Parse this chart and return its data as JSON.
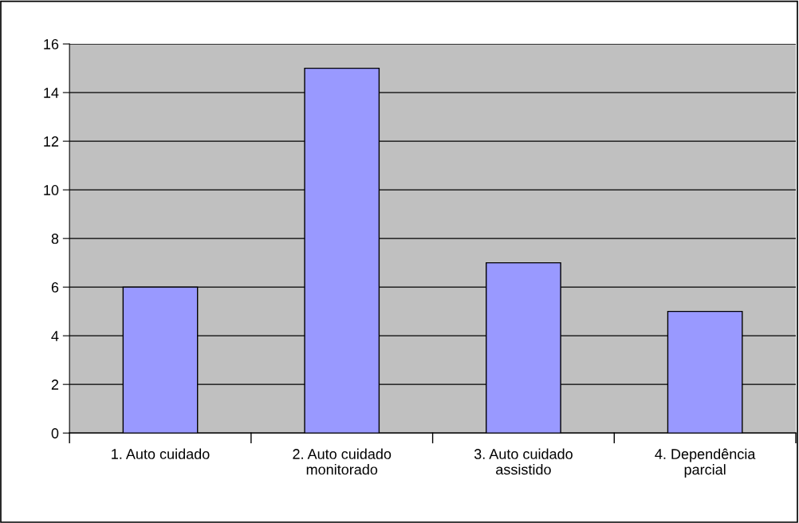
{
  "chart_data": {
    "type": "bar",
    "categories": [
      "1. Auto cuidado",
      "2. Auto cuidado\nmonitorado",
      "3. Auto cuidado\nassistido",
      "4. Dependência\nparcial"
    ],
    "values": [
      6,
      15,
      7,
      5
    ],
    "color": "#9999ff",
    "ylim": [
      0,
      16
    ],
    "yticks": [
      0,
      2,
      4,
      6,
      8,
      10,
      12,
      14,
      16
    ],
    "grid": "y",
    "legend": false
  }
}
